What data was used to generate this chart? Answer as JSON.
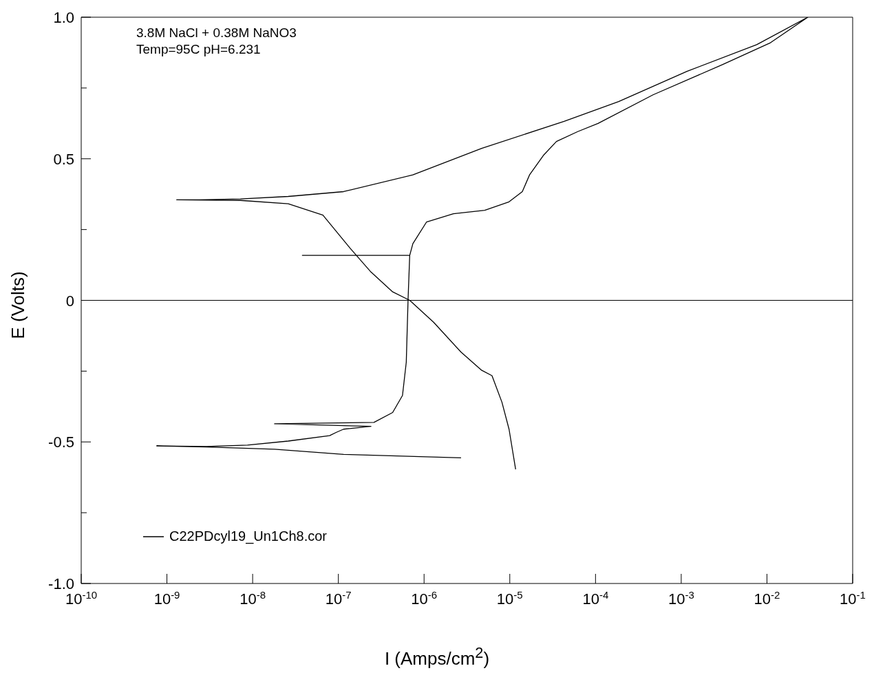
{
  "chart_data": {
    "type": "line",
    "xlabel": "I (Amps/cm$^{2}$)",
    "ylabel": "E (Volts)",
    "annotations": [
      "3.8M NaCl + 0.38M NaNO3",
      "Temp=95C pH=6.231"
    ],
    "log": "x",
    "xlim": [
      1e-10,
      0.1
    ],
    "ylim": [
      -1,
      1
    ],
    "xticks": [
      {
        "value": 1e-10,
        "label": "10$^{-10}$"
      },
      {
        "value": 1e-09,
        "label": "10$^{-9}$"
      },
      {
        "value": 1e-08,
        "label": "10$^{-8}$"
      },
      {
        "value": 1e-07,
        "label": "10$^{-7}$"
      },
      {
        "value": 1e-06,
        "label": "10$^{-6}$"
      },
      {
        "value": 1e-05,
        "label": "10$^{-5}$"
      },
      {
        "value": 0.0001,
        "label": "10$^{-4}$"
      },
      {
        "value": 0.001,
        "label": "10$^{-3}$"
      },
      {
        "value": 0.01,
        "label": "10$^{-2}$"
      },
      {
        "value": 0.1,
        "label": "10$^{-1}$"
      }
    ],
    "yticks": [
      {
        "value": -1,
        "label": "-1.0"
      },
      {
        "value": -0.75,
        "label": null
      },
      -0.5,
      {
        "value": -0.25,
        "label": null
      },
      0,
      {
        "value": 0.25,
        "label": null
      },
      0.5,
      {
        "value": 0.75,
        "label": null
      },
      {
        "value": 1,
        "label": "1.0"
      }
    ],
    "ref_lines": [
      {
        "axis": "y",
        "value": 0,
        "color": "#000000"
      }
    ],
    "legend": "bottom left",
    "grid": false,
    "marker": "none",
    "line_style": "solid",
    "series": [
      {
        "name": "C22PDcyl19_Un1Ch8.cor",
        "color": "#000000",
        "x": [
          2.7e-06,
          1.15e-07,
          1.8e-08,
          2.9e-09,
          7.6e-10,
          2.9e-09,
          8.7e-09,
          2.6e-08,
          7.9e-08,
          9.5e-08,
          1.15e-07,
          2.4e-07,
          1.8e-08,
          2.6e-07,
          4.3e-07,
          5.6e-07,
          6.2e-07,
          6.5e-07,
          6.8e-07,
          3.8e-08,
          6.8e-07,
          7.4e-07,
          1.07e-06,
          2.2e-06,
          5.1e-06,
          9.8e-06,
          1.4e-05,
          1.7e-05,
          2.5e-05,
          3.5e-05,
          6.2e-05,
          0.000107,
          0.00047,
          0.003,
          0.011,
          0.03,
          0.0076,
          0.00117,
          0.000186,
          4.3e-05,
          4.7e-06,
          7.4e-07,
          1.15e-07,
          2.6e-08,
          7.2e-09,
          2.4e-09,
          1.3e-09,
          7.2e-09,
          2.6e-08,
          6.6e-08,
          1.38e-07,
          2.4e-07,
          4.3e-07,
          6.8e-07,
          1.29e-06,
          2.7e-06,
          4.7e-06,
          6.2e-06,
          8.1e-06,
          9.8e-06,
          1.17e-05
        ],
        "values": [
          -0.556,
          -0.544,
          -0.526,
          -0.518,
          -0.514,
          -0.516,
          -0.511,
          -0.497,
          -0.478,
          -0.466,
          -0.455,
          -0.445,
          -0.436,
          -0.431,
          -0.396,
          -0.336,
          -0.218,
          0,
          0.159,
          0.159,
          0.159,
          0.2,
          0.277,
          0.306,
          0.318,
          0.348,
          0.384,
          0.443,
          0.514,
          0.561,
          0.596,
          0.625,
          0.726,
          0.832,
          0.91,
          1.0,
          0.903,
          0.809,
          0.702,
          0.632,
          0.537,
          0.443,
          0.384,
          0.367,
          0.358,
          0.355,
          0.355,
          0.353,
          0.341,
          0.301,
          0.183,
          0.1,
          0.03,
          0,
          -0.077,
          -0.183,
          -0.247,
          -0.266,
          -0.36,
          -0.455,
          -0.597
        ]
      }
    ]
  }
}
